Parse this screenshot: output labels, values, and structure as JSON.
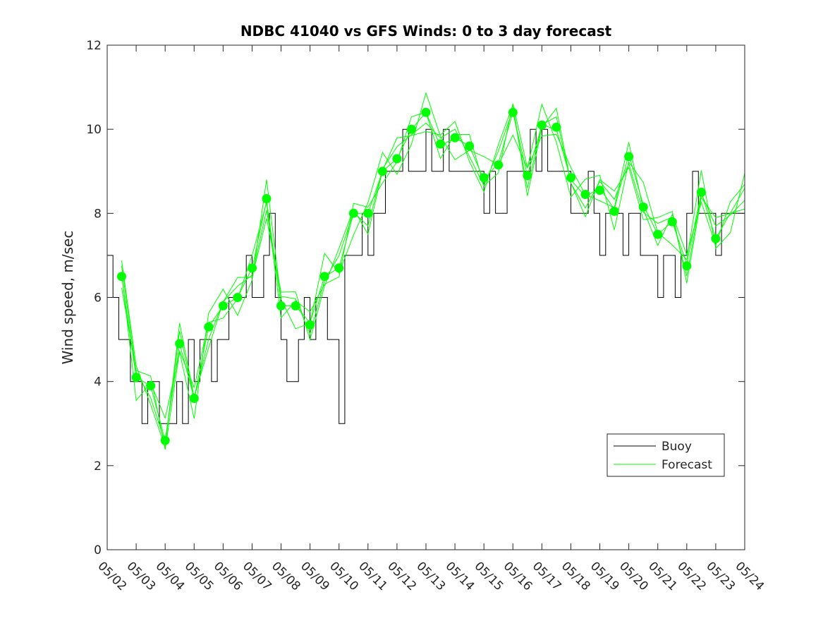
{
  "chart_data": {
    "type": "line",
    "title": "NDBC 41040 vs GFS Winds: 0 to 3 day forecast",
    "xlabel": "",
    "ylabel": "Wind speed, m/sec",
    "xlim": [
      0,
      22
    ],
    "ylim": [
      0,
      12
    ],
    "x_tick_labels": [
      "05/02",
      "05/03",
      "05/04",
      "05/05",
      "05/06",
      "05/07",
      "05/08",
      "05/09",
      "05/10",
      "05/11",
      "05/12",
      "05/13",
      "05/14",
      "05/15",
      "05/16",
      "05/17",
      "05/18",
      "05/19",
      "05/20",
      "05/21",
      "05/22",
      "05/23",
      "05/24"
    ],
    "y_ticks": [
      0,
      2,
      4,
      6,
      8,
      10,
      12
    ],
    "grid": false,
    "legend_position": "bottom-right",
    "series": [
      {
        "name": "Buoy",
        "color": "#000000",
        "style": "step line",
        "x": [
          0.0,
          0.2,
          0.4,
          0.6,
          0.8,
          1.0,
          1.2,
          1.4,
          1.6,
          1.8,
          2.0,
          2.2,
          2.4,
          2.6,
          2.8,
          3.0,
          3.2,
          3.4,
          3.6,
          3.8,
          4.0,
          4.2,
          4.4,
          4.6,
          4.8,
          5.0,
          5.2,
          5.4,
          5.6,
          5.8,
          6.0,
          6.2,
          6.4,
          6.6,
          6.8,
          7.0,
          7.2,
          7.4,
          7.6,
          7.8,
          8.0,
          8.2,
          8.4,
          8.6,
          8.8,
          9.0,
          9.2,
          9.4,
          9.6,
          9.8,
          10.0,
          10.2,
          10.4,
          10.6,
          10.8,
          11.0,
          11.2,
          11.4,
          11.6,
          11.8,
          12.0,
          12.2,
          12.4,
          12.6,
          12.8,
          13.0,
          13.2,
          13.4,
          13.6,
          13.8,
          14.0,
          14.2,
          14.4,
          14.6,
          14.8,
          15.0,
          15.2,
          15.4,
          15.6,
          15.8,
          16.0,
          16.2,
          16.4,
          16.6,
          16.8,
          17.0,
          17.2,
          17.4,
          17.6,
          17.8,
          18.0,
          18.2,
          18.4,
          18.6,
          18.8,
          19.0,
          19.2,
          19.4,
          19.6,
          19.8,
          20.0,
          20.2,
          20.4,
          20.6,
          20.8,
          21.0,
          21.2,
          21.4,
          21.6,
          21.8,
          22.0
        ],
        "y": [
          7,
          6,
          5,
          5,
          4,
          4,
          3,
          4,
          4,
          3,
          3,
          3,
          4,
          3,
          5,
          4,
          5,
          5,
          4,
          5,
          5,
          6,
          6,
          6,
          7,
          6,
          6,
          7,
          8,
          6,
          5,
          4,
          4,
          5,
          6,
          5,
          6,
          6,
          5,
          5,
          3,
          7,
          7,
          7,
          8,
          7,
          8,
          8,
          9,
          9,
          9,
          10,
          9,
          9,
          9,
          10,
          9,
          9,
          10,
          9,
          9,
          9,
          9,
          9,
          9,
          8,
          9,
          8,
          8,
          9,
          9,
          9,
          9,
          10,
          9,
          10,
          9,
          9,
          9,
          9,
          8,
          8,
          8,
          9,
          8,
          7,
          8,
          8,
          8,
          7,
          8,
          8,
          7,
          7,
          7,
          6,
          7,
          7,
          6,
          7,
          8,
          9,
          8,
          8,
          8,
          7,
          8,
          8,
          8,
          8,
          8
        ]
      },
      {
        "name": "Forecast",
        "color": "#00ff00",
        "style": "ensemble lines",
        "x": [
          0.5,
          1.0,
          1.5,
          2.0,
          2.5,
          3.0,
          3.5,
          4.0,
          4.5,
          5.0,
          5.5,
          6.0,
          6.5,
          7.0,
          7.5,
          8.0,
          8.5,
          9.0,
          9.5,
          10.0,
          10.5,
          11.0,
          11.5,
          12.0,
          12.5,
          13.0,
          13.5,
          14.0,
          14.5,
          15.0,
          15.5,
          16.0,
          16.5,
          17.0,
          17.5,
          18.0,
          18.5,
          19.0,
          19.5,
          20.0,
          20.5,
          21.0,
          21.5,
          22.0
        ],
        "y": [
          6.5,
          4.1,
          3.9,
          2.6,
          4.9,
          3.6,
          5.3,
          5.8,
          6.0,
          6.7,
          8.3,
          5.8,
          5.8,
          5.4,
          6.5,
          6.7,
          8.0,
          8.0,
          9.0,
          9.3,
          10.0,
          10.4,
          9.6,
          9.8,
          9.6,
          8.8,
          9.2,
          10.4,
          8.9,
          10.1,
          10.0,
          8.8,
          8.4,
          8.6,
          8.1,
          9.4,
          8.2,
          7.5,
          7.8,
          6.8,
          8.5,
          7.4,
          8.0,
          8.6
        ]
      },
      {
        "name": "",
        "color": "#00ff00",
        "style": "markers",
        "x": [
          0.5,
          1.0,
          1.5,
          2.0,
          2.5,
          3.0,
          3.5,
          4.0,
          4.5,
          5.0,
          5.5,
          6.0,
          6.5,
          7.0,
          7.5,
          8.0,
          8.5,
          9.0,
          9.5,
          10.0,
          10.5,
          11.0,
          11.5,
          12.0,
          12.5,
          13.0,
          13.5,
          14.0,
          14.5,
          15.0,
          15.5,
          16.0,
          16.5,
          17.0,
          17.5,
          18.0,
          18.5,
          19.0,
          19.5,
          20.0,
          20.5,
          21.0
        ],
        "y": [
          6.5,
          4.1,
          3.9,
          2.6,
          4.9,
          3.6,
          5.3,
          5.8,
          6.0,
          6.7,
          8.35,
          5.8,
          5.8,
          5.35,
          6.5,
          6.7,
          8.0,
          8.0,
          9.0,
          9.3,
          10.0,
          10.4,
          9.65,
          9.8,
          9.6,
          8.85,
          9.15,
          10.4,
          8.9,
          10.1,
          10.05,
          8.85,
          8.45,
          8.55,
          8.05,
          9.35,
          8.15,
          7.5,
          7.8,
          6.75,
          8.5,
          7.4
        ]
      }
    ],
    "legend": {
      "entries": [
        "Buoy",
        "Forecast"
      ]
    }
  }
}
